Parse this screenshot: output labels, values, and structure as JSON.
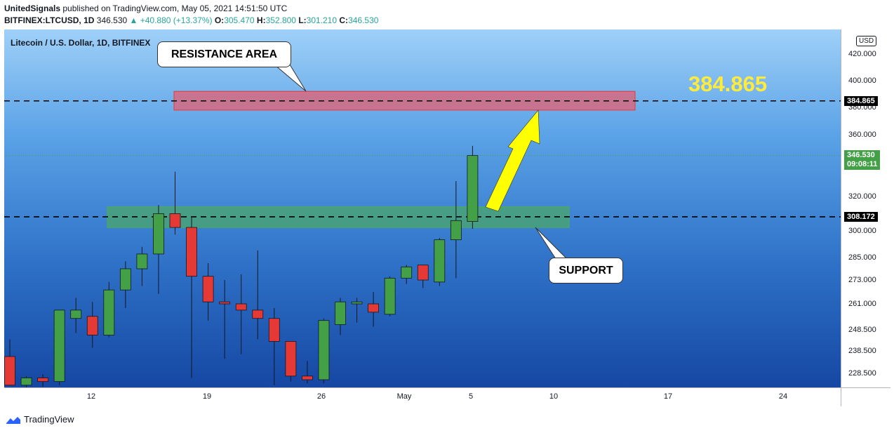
{
  "header": {
    "publisher": "UnitedSignals",
    "published_text": "published on TradingView.com, May 05, 2021 14:51:50 UTC",
    "symbol": "BITFINEX:LTCUSD, 1D",
    "last": "346.530",
    "change": "▲ +40.880 (+13.37%)",
    "o_label": "O:",
    "o": "305.470",
    "h_label": "H:",
    "h": "352.800",
    "l_label": "L:",
    "l": "301.210",
    "c_label": "C:",
    "c": "346.530"
  },
  "legend": "Litecoin / U.S. Dollar, 1D, BITFINEX",
  "currency": "USD",
  "annotations": {
    "resistance_label": "RESISTANCE AREA",
    "support_label": "SUPPORT",
    "target_price": "384.865"
  },
  "price_axis": {
    "ticks": [
      "420.000",
      "400.000",
      "380.000",
      "360.000",
      "320.000",
      "300.000",
      "285.000",
      "273.000",
      "261.000",
      "248.500",
      "238.500",
      "228.500"
    ],
    "label_resistance": "384.865",
    "label_last": "346.530",
    "label_timer": "09:08:11",
    "label_support": "308.172"
  },
  "time_axis": {
    "ticks": [
      "12",
      "19",
      "26",
      "May",
      "5",
      "10",
      "17",
      "24"
    ]
  },
  "footer": {
    "brand": "TradingView"
  },
  "colors": {
    "up": "#43a047",
    "down": "#e53935",
    "resistance_zone": "#e06377",
    "support_zone": "#4caf50",
    "arrow": "#ffff00",
    "target_text": "#ffeb3b"
  },
  "chart_data": {
    "type": "candlestick",
    "title": "Litecoin / U.S. Dollar, 1D, BITFINEX",
    "ylim": [
      222,
      430
    ],
    "y_scale": "log",
    "resistance_zone": [
      378,
      392
    ],
    "support_zone": [
      302,
      314
    ],
    "resistance_level": 384.865,
    "support_level": 308.172,
    "current_price": 346.53,
    "candles": [
      {
        "date": "2021-04-07",
        "o": 236,
        "h": 244,
        "l": 222,
        "c": 222
      },
      {
        "date": "2021-04-08",
        "o": 222,
        "h": 227,
        "l": 220,
        "c": 226
      },
      {
        "date": "2021-04-09",
        "o": 226,
        "h": 228,
        "l": 221,
        "c": 224
      },
      {
        "date": "2021-04-10",
        "o": 224,
        "h": 258,
        "l": 222,
        "c": 258
      },
      {
        "date": "2021-04-11",
        "o": 254,
        "h": 264,
        "l": 247,
        "c": 258
      },
      {
        "date": "2021-04-12",
        "o": 255,
        "h": 262,
        "l": 240,
        "c": 246
      },
      {
        "date": "2021-04-13",
        "o": 246,
        "h": 272,
        "l": 245,
        "c": 268
      },
      {
        "date": "2021-04-14",
        "o": 268,
        "h": 283,
        "l": 259,
        "c": 279
      },
      {
        "date": "2021-04-15",
        "o": 279,
        "h": 291,
        "l": 270,
        "c": 287
      },
      {
        "date": "2021-04-16",
        "o": 287,
        "h": 315,
        "l": 266,
        "c": 310
      },
      {
        "date": "2021-04-17",
        "o": 310,
        "h": 336,
        "l": 298,
        "c": 302
      },
      {
        "date": "2021-04-18",
        "o": 302,
        "h": 308,
        "l": 226,
        "c": 275
      },
      {
        "date": "2021-04-19",
        "o": 275,
        "h": 282,
        "l": 253,
        "c": 262
      },
      {
        "date": "2021-04-20",
        "o": 262,
        "h": 273,
        "l": 235,
        "c": 261
      },
      {
        "date": "2021-04-21",
        "o": 261,
        "h": 276,
        "l": 237,
        "c": 258
      },
      {
        "date": "2021-04-22",
        "o": 258,
        "h": 289,
        "l": 244,
        "c": 254
      },
      {
        "date": "2021-04-23",
        "o": 254,
        "h": 259,
        "l": 222,
        "c": 243
      },
      {
        "date": "2021-04-24",
        "o": 243,
        "h": 243,
        "l": 224,
        "c": 227
      },
      {
        "date": "2021-04-25",
        "o": 227,
        "h": 234,
        "l": 223,
        "c": 225
      },
      {
        "date": "2021-04-26",
        "o": 225,
        "h": 254,
        "l": 223,
        "c": 253
      },
      {
        "date": "2021-04-27",
        "o": 251,
        "h": 264,
        "l": 246,
        "c": 262
      },
      {
        "date": "2021-04-28",
        "o": 261,
        "h": 264,
        "l": 252,
        "c": 262
      },
      {
        "date": "2021-04-29",
        "o": 261,
        "h": 267,
        "l": 250,
        "c": 257
      },
      {
        "date": "2021-04-30",
        "o": 256,
        "h": 275,
        "l": 255,
        "c": 274
      },
      {
        "date": "2021-05-01",
        "o": 274,
        "h": 281,
        "l": 271,
        "c": 280
      },
      {
        "date": "2021-05-02",
        "o": 281,
        "h": 281,
        "l": 269,
        "c": 273
      },
      {
        "date": "2021-05-03",
        "o": 272,
        "h": 296,
        "l": 270,
        "c": 295
      },
      {
        "date": "2021-05-04",
        "o": 295,
        "h": 330,
        "l": 274,
        "c": 306
      },
      {
        "date": "2021-05-05",
        "o": 305.47,
        "h": 352.8,
        "l": 301.21,
        "c": 346.53
      }
    ]
  }
}
